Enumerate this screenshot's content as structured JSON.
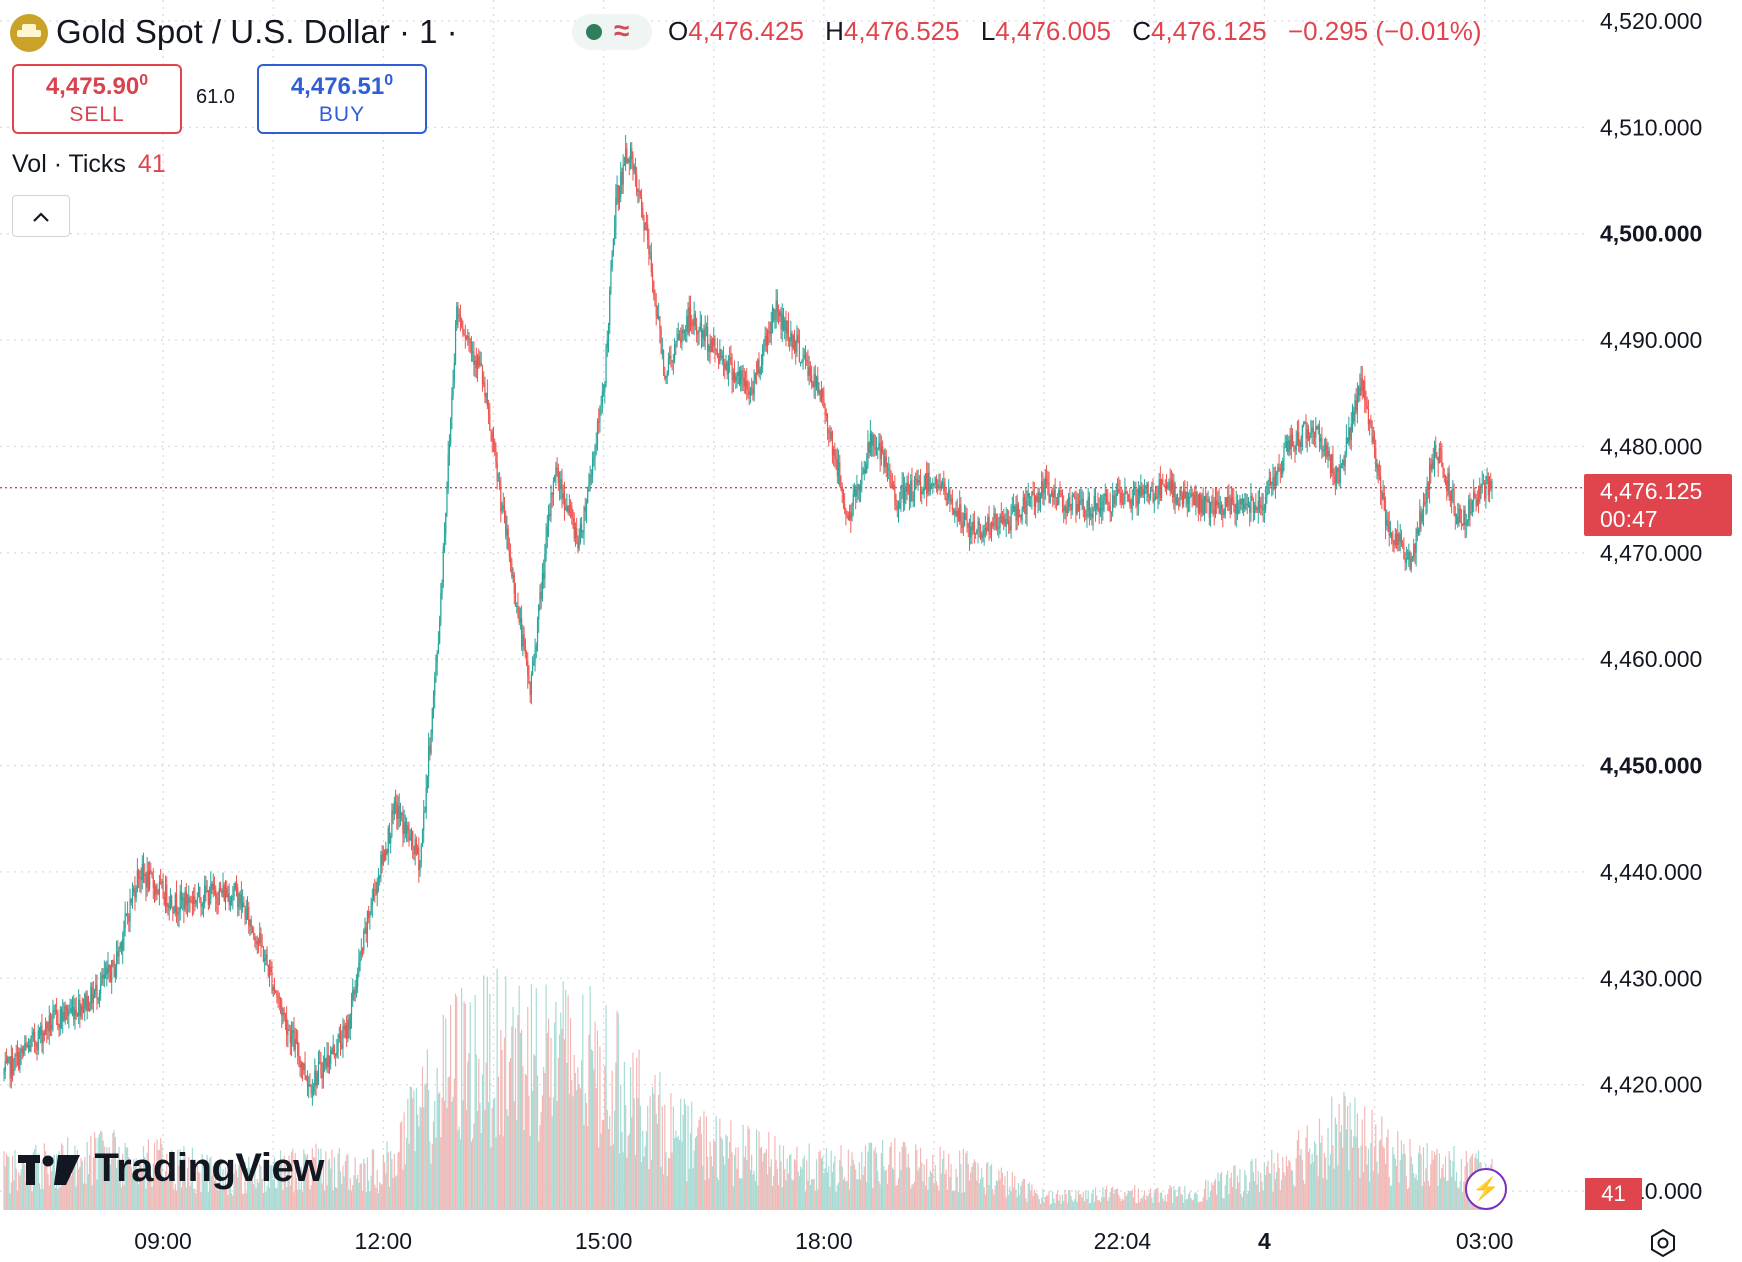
{
  "header": {
    "symbol_title": "Gold Spot / U.S. Dollar · 1 ·",
    "ohlc": {
      "open_key": "O",
      "open": "4,476.425",
      "high_key": "H",
      "high": "4,476.525",
      "low_key": "L",
      "low": "4,476.005",
      "close_key": "C",
      "close": "4,476.125",
      "change": "−0.295 (−0.01%)"
    }
  },
  "trade": {
    "sell_price_main": "4,475.90",
    "sell_price_small": "0",
    "sell_label": "SELL",
    "spread": "61.0",
    "buy_price_main": "4,476.51",
    "buy_price_small": "0",
    "buy_label": "BUY"
  },
  "volume_indicator": {
    "label": "Vol · Ticks",
    "value": "41"
  },
  "collapse_symbol": "^",
  "watermark": {
    "text": "TradingView"
  },
  "price_axis": {
    "ticks": [
      "4,520.000",
      "4,510.000",
      "4,500.000",
      "4,490.000",
      "4,480.000",
      "4,470.000",
      "4,460.000",
      "4,450.000",
      "4,440.000",
      "4,430.000",
      "4,420.000",
      "4,410.000"
    ],
    "bold_ticks": [
      "4,500.000",
      "4,450.000"
    ],
    "last_price": "4,476.125",
    "countdown": "00:47",
    "volume_tag": "41"
  },
  "time_axis": {
    "labels": [
      "09:00",
      "12:00",
      "15:00",
      "18:00",
      "22:04",
      "4",
      "03:00"
    ]
  },
  "colors": {
    "up": "#26a69a",
    "down": "#ef5350",
    "accent_red": "#e0454e",
    "buy_blue": "#2f5ed6"
  },
  "icons": [
    "gold-coin-icon",
    "market-open-dot-icon",
    "wave-icon",
    "chevron-up-icon",
    "lightning-icon",
    "settings-icon",
    "tradingview-logo-icon"
  ],
  "chart_data": {
    "type": "candlestick",
    "title": "Gold Spot / U.S. Dollar",
    "timeframe": "1",
    "ylim": [
      4410,
      4520
    ],
    "y_ticks": [
      4410,
      4420,
      4430,
      4440,
      4450,
      4460,
      4470,
      4480,
      4490,
      4500,
      4510,
      4520
    ],
    "x_ticks": [
      "09:00",
      "12:00",
      "15:00",
      "18:00",
      "22:04",
      "4",
      "03:00"
    ],
    "grid": true,
    "series": [
      {
        "name": "price",
        "x": [
          "06:50",
          "07:30",
          "08:00",
          "08:20",
          "08:40",
          "09:10",
          "09:40",
          "10:00",
          "10:20",
          "10:40",
          "11:00",
          "11:30",
          "11:50",
          "12:10",
          "12:30",
          "12:45",
          "13:00",
          "13:20",
          "13:40",
          "14:00",
          "14:20",
          "14:40",
          "15:00",
          "15:10",
          "15:20",
          "15:35",
          "15:50",
          "16:10",
          "16:40",
          "17:00",
          "17:20",
          "17:40",
          "18:00",
          "18:20",
          "18:40",
          "19:00",
          "19:30",
          "20:00",
          "20:30",
          "21:00",
          "21:30",
          "22:04",
          "22:40",
          "23:20",
          "00:00",
          "00:20",
          "00:40",
          "01:00",
          "01:20",
          "01:40",
          "02:00",
          "02:20",
          "02:40",
          "03:00"
        ],
        "y": [
          4421,
          4426,
          4428,
          4431,
          4440,
          4437,
          4438,
          4438,
          4433,
          4426,
          4420,
          4425,
          4437,
          4446,
          4441,
          4462,
          4493,
          4487,
          4472,
          4457,
          4478,
          4471,
          4485,
          4503,
          4508,
          4500,
          4487,
          4492,
          4488,
          4485,
          4493,
          4489,
          4484,
          4473,
          4481,
          4475,
          4477,
          4472,
          4473,
          4476,
          4474,
          4475,
          4476,
          4474,
          4475,
          4480,
          4482,
          4477,
          4486,
          4473,
          4469,
          4480,
          4473,
          4476.125
        ]
      }
    ],
    "volume": {
      "name": "Vol · Ticks",
      "last": 41,
      "x": [
        "07:00",
        "08:00",
        "09:00",
        "10:00",
        "11:00",
        "12:00",
        "13:00",
        "14:00",
        "15:00",
        "16:00",
        "17:00",
        "18:00",
        "19:00",
        "20:00",
        "21:00",
        "22:00",
        "23:00",
        "00:00",
        "01:00",
        "02:00",
        "03:00"
      ],
      "y": [
        30,
        40,
        35,
        25,
        32,
        30,
        110,
        120,
        105,
        55,
        40,
        30,
        35,
        30,
        10,
        12,
        12,
        28,
        60,
        35,
        28
      ]
    }
  }
}
